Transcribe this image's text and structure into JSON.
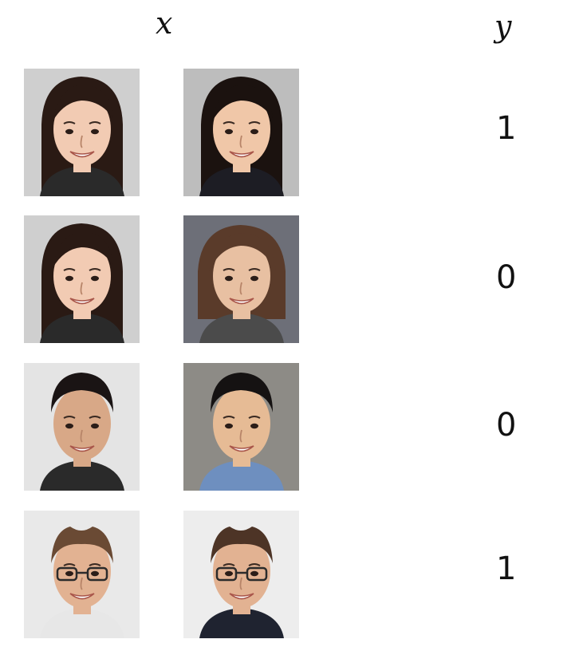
{
  "header": {
    "x_label": "x",
    "y_label": "y"
  },
  "pairs": [
    {
      "label": "1",
      "left": {
        "bg": "#cfcfcf",
        "hair": "#2a1a14",
        "skin": "#f2cbb3",
        "cloth": "#2a2a2a",
        "style": "long",
        "glasses": false
      },
      "right": {
        "bg": "#bdbdbd",
        "hair": "#1b120f",
        "skin": "#f0c7a8",
        "cloth": "#1d1d24",
        "style": "long",
        "glasses": false
      }
    },
    {
      "label": "0",
      "left": {
        "bg": "#cfcfcf",
        "hair": "#2a1a14",
        "skin": "#f2cbb3",
        "cloth": "#2a2a2a",
        "style": "long",
        "glasses": false
      },
      "right": {
        "bg": "#6d6f78",
        "hair": "#5a3b2a",
        "skin": "#e8c0a2",
        "cloth": "#4b4b4b",
        "style": "bob",
        "glasses": false
      }
    },
    {
      "label": "0",
      "left": {
        "bg": "#e4e4e4",
        "hair": "#1a1414",
        "skin": "#d8a887",
        "cloth": "#2a2a2a",
        "style": "short",
        "glasses": false
      },
      "right": {
        "bg": "#8d8b86",
        "hair": "#151212",
        "skin": "#e6bb95",
        "cloth": "#6e8fbf",
        "style": "short",
        "glasses": false
      }
    },
    {
      "label": "1",
      "left": {
        "bg": "#e9e9e9",
        "hair": "#6a4a34",
        "skin": "#e2b292",
        "cloth": "#e7e7e7",
        "style": "receding",
        "glasses": true
      },
      "right": {
        "bg": "#ededed",
        "hair": "#4d3426",
        "skin": "#e2b292",
        "cloth": "#1f2330",
        "style": "receding",
        "glasses": true
      }
    }
  ]
}
